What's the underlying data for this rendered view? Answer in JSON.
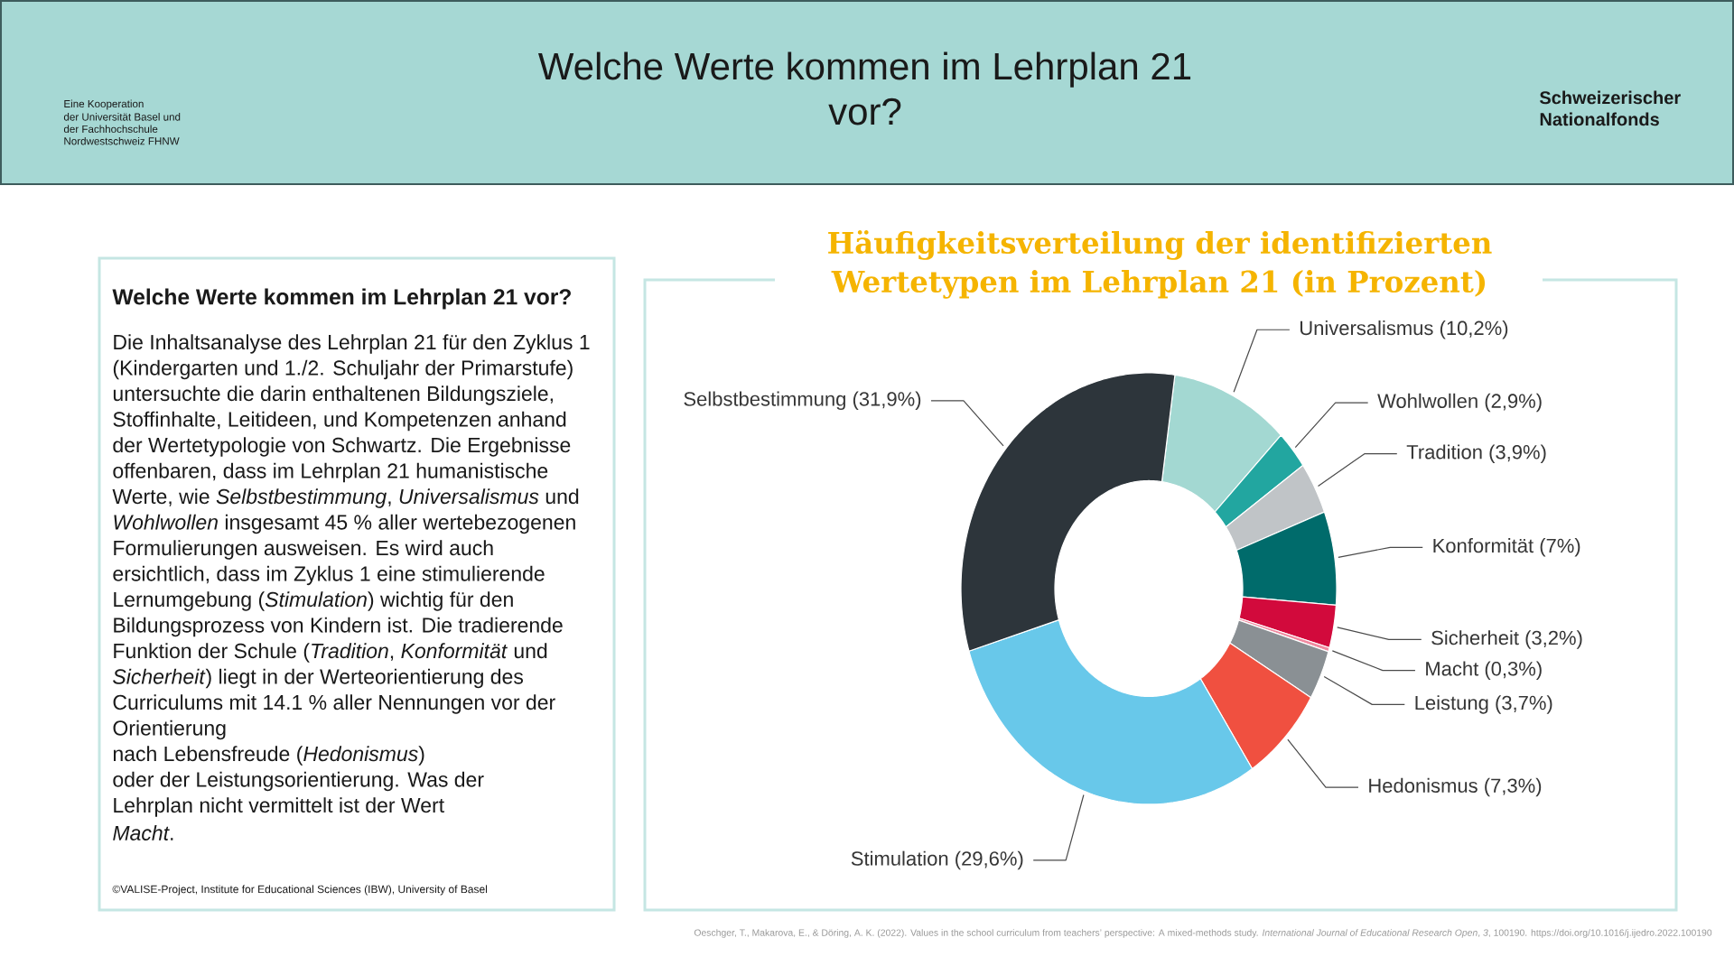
{
  "chart_data": [
    {
      "type": "other",
      "title": "Welche Werte kommen im Lehrplan 21 vor?",
      "annotations": [
        "Eine Kooperation",
        "der Universität Basel und",
        "der Fachhochschule",
        "Nordwestschweiz FHNW",
        "Schweizerischer",
        "Nationalfonds"
      ]
    },
    {
      "type": "other",
      "title": "Welche Werte kommen im Lehrplan 21 vor?",
      "annotations": [
        "Die Inhaltsanalyse des Lehrplan 21 für den Zyklus 1",
        "(Kindergarten und 1./2. Schuljahr der Primarstufe)",
        "untersuchte die darin enthaltenen Bildungsziele,",
        "Stoffinhalte, Leitideen, und Kompetenzen anhand",
        "der Wertetypologie von Schwartz. Die Ergebnisse",
        "offenbaren, dass im Lehrplan 21 humanistische",
        "Werte, wie *Selbstbestimmung*, *Universalismus* und",
        "*Wohlwollen* insgesamt 45 % aller wertebezogenen",
        "Formulierungen ausweisen. Es wird auch",
        "ersichtlich, dass im Zyklus 1 eine stimulierende",
        "Lernumgebung (*Stimulation*) wichtig für den",
        "Bildungsprozess von Kindern ist. Die tradierende",
        "Funktion der Schule (*Tradition*, *Konformität* und",
        "*Sicherheit*) liegt in der Werteorientierung des",
        "Curriculums mit 14.1 % aller Nennungen vor der",
        "Orientierung",
        "nach Lebensfreude (*Hedonismus*)",
        "oder der Leistungsorientierung. Was der",
        "Lehrplan nicht vermittelt ist der Wert",
        "*Macht*.",
        "©VALISE-Project, Institute for Educational Sciences (IBW), University of Basel"
      ]
    },
    {
      "type": "donut",
      "title": "Häufigkeitsverteilung der identifizierten Wertetypen im Lehrplan 21 (in Prozent)",
      "categories": [
        "Universalismus",
        "Wohlwollen",
        "Tradition",
        "Konformität",
        "Sicherheit",
        "Macht",
        "Leistung",
        "Hedonismus",
        "Stimulation",
        "Selbstbestimmung"
      ],
      "values": [
        10.2,
        2.9,
        3.9,
        7,
        3.2,
        0.3,
        3.7,
        7.3,
        29.6,
        31.9
      ],
      "value_labels": [
        "(10,2%)",
        "(2,9%)",
        "(3,9%)",
        "(7%)",
        "(3,2%)",
        "(0,3%)",
        "(3,7%)",
        "(7,3%)",
        "(29,6%)",
        "(31,9%)"
      ],
      "colors": [
        "#a3d8d2",
        "#22a6a0",
        "#c0c4c7",
        "#006b6b",
        "#d20a3c",
        "#f08aa0",
        "#8a9094",
        "#f05040",
        "#68c8ea",
        "#2d353b"
      ],
      "annotations": [
        "Oeschger, T., Makarova, E., & Döring, A. K. (2022). Values in the school curriculum from teachers’ perspective: A mixed-methods study. *International Journal of Educational Research Open*, *3*, 100190. https://doi.org/10.1016/j.ijedro.2022.100190"
      ]
    }
  ]
}
